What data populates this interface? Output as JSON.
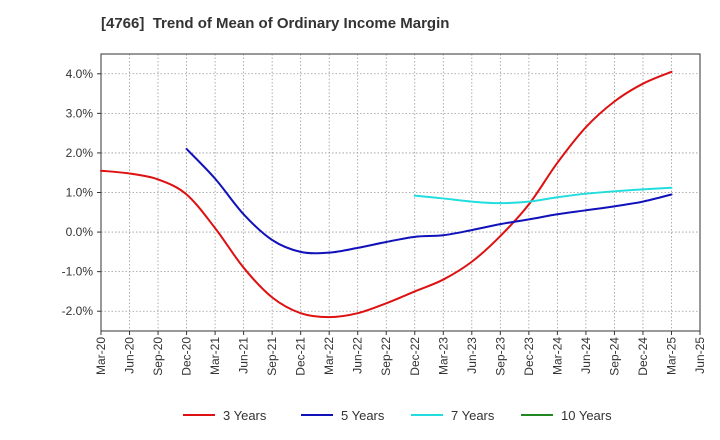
{
  "chart_data": {
    "type": "line",
    "title": "[4766]  Trend of Mean of Ordinary Income Margin",
    "xlabel": "",
    "ylabel": "",
    "x": [
      "Mar-20",
      "Jun-20",
      "Sep-20",
      "Dec-20",
      "Mar-21",
      "Jun-21",
      "Sep-21",
      "Dec-21",
      "Mar-22",
      "Jun-22",
      "Sep-22",
      "Dec-22",
      "Mar-23",
      "Jun-23",
      "Sep-23",
      "Dec-23",
      "Mar-24",
      "Jun-24",
      "Sep-24",
      "Dec-24",
      "Mar-25",
      "Jun-25"
    ],
    "ylim": [
      -2.5,
      4.5
    ],
    "yticks": [
      -2.0,
      -1.0,
      0.0,
      1.0,
      2.0,
      3.0,
      4.0
    ],
    "ytick_labels": [
      "-2.0%",
      "-1.0%",
      "0.0%",
      "1.0%",
      "2.0%",
      "3.0%",
      "4.0%"
    ],
    "grid": true,
    "legend_position": "bottom",
    "series": [
      {
        "name": "3 Years",
        "color": "#dd1111",
        "values": [
          1.55,
          1.48,
          1.33,
          0.95,
          0.1,
          -0.9,
          -1.65,
          -2.05,
          -2.15,
          -2.05,
          -1.8,
          -1.5,
          -1.2,
          -0.75,
          -0.1,
          0.7,
          1.75,
          2.65,
          3.3,
          3.75,
          4.05,
          null
        ]
      },
      {
        "name": "5 Years",
        "color": "#1111bb",
        "values": [
          null,
          null,
          null,
          2.1,
          1.35,
          0.45,
          -0.2,
          -0.5,
          -0.52,
          -0.4,
          -0.25,
          -0.12,
          -0.08,
          0.05,
          0.2,
          0.32,
          0.45,
          0.55,
          0.65,
          0.77,
          0.95,
          null
        ]
      },
      {
        "name": "7 Years",
        "color": "#22dddd",
        "values": [
          null,
          null,
          null,
          null,
          null,
          null,
          null,
          null,
          null,
          null,
          null,
          0.92,
          0.85,
          0.77,
          0.73,
          0.77,
          0.88,
          0.97,
          1.03,
          1.08,
          1.12,
          null
        ]
      },
      {
        "name": "10 Years",
        "color": "#228822",
        "values": [
          null,
          null,
          null,
          null,
          null,
          null,
          null,
          null,
          null,
          null,
          null,
          null,
          null,
          null,
          null,
          null,
          null,
          null,
          null,
          null,
          null,
          null
        ]
      }
    ]
  }
}
